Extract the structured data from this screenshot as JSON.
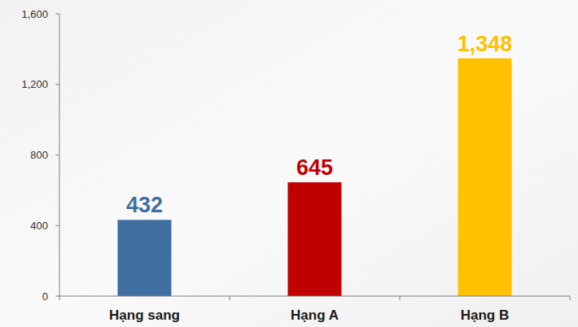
{
  "chart_data": {
    "type": "bar",
    "categories": [
      "Hạng sang",
      "Hạng A",
      "Hạng B"
    ],
    "values": [
      432,
      645,
      1348
    ],
    "value_labels": [
      "432",
      "645",
      "1,348"
    ],
    "colors": [
      "#3f6fa1",
      "#c00000",
      "#ffc000"
    ],
    "ylim": [
      0,
      1600
    ],
    "yticks": [
      0,
      400,
      800,
      {
        "value": 1200,
        "label": "1,200"
      },
      {
        "value": 1600,
        "label": "1,600"
      }
    ],
    "grid": false,
    "data_labels": true
  }
}
